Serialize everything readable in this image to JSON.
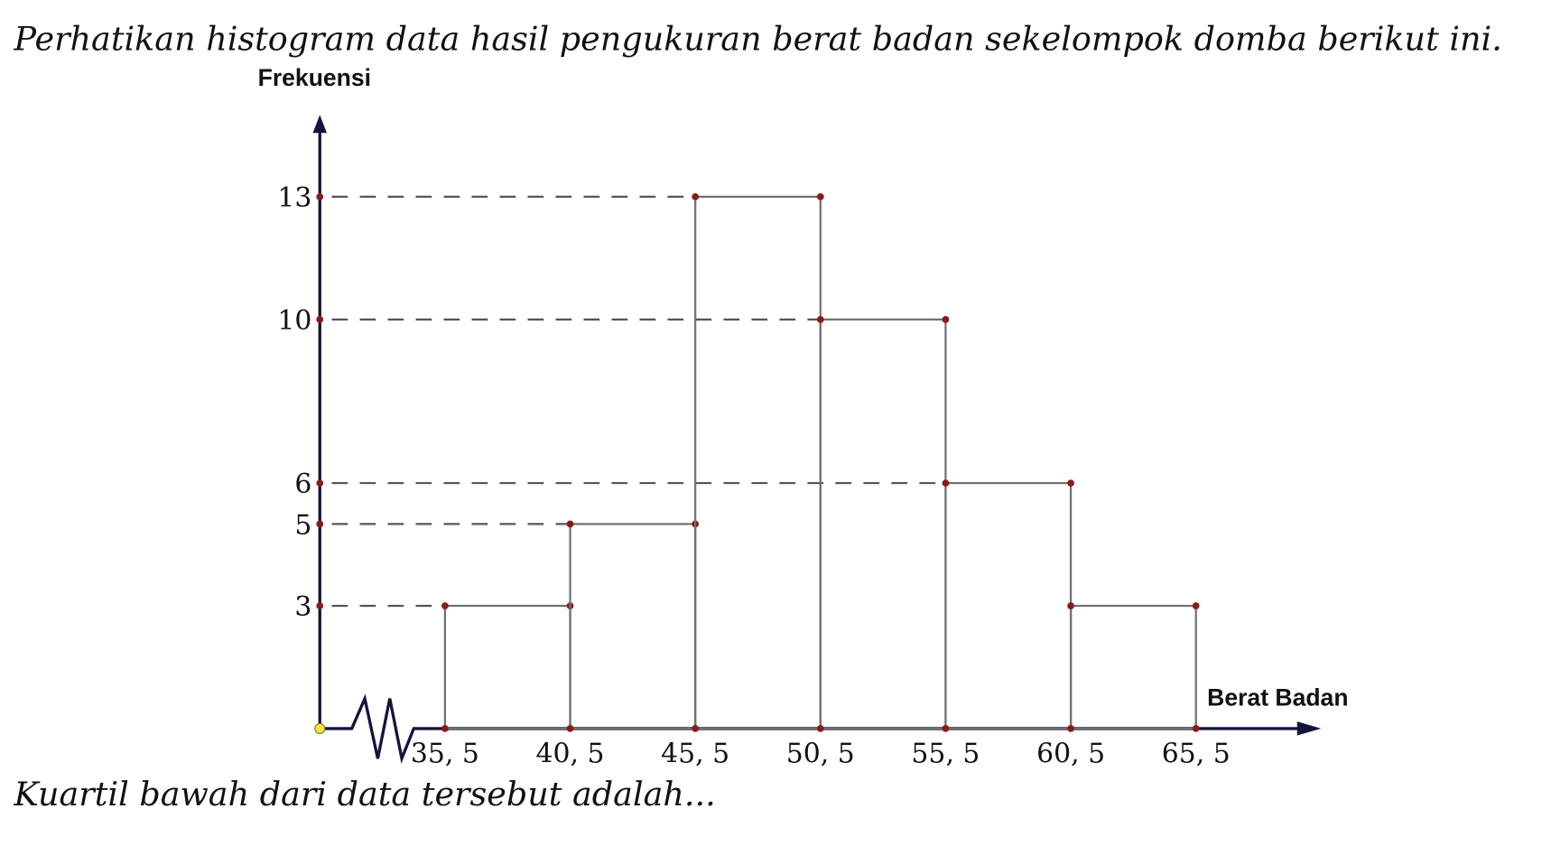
{
  "intro": "Perhatikan histogram data hasil pengukuran berat badan sekelompok domba berikut ini.",
  "question": "Kuartil bawah dari data tersebut adalah...",
  "chart_data": {
    "type": "histogram",
    "y_label": "Frekuensi",
    "x_label": "Berat Badan",
    "bins": [
      35.5,
      40.5,
      45.5,
      50.5,
      55.5,
      60.5,
      65.5
    ],
    "values": [
      3,
      5,
      13,
      10,
      6,
      3
    ],
    "xlim": [
      30.5,
      70.5
    ],
    "xticks": [
      {
        "value": 35.5,
        "label": "35, 5"
      },
      {
        "value": 40.5,
        "label": "40, 5"
      },
      {
        "value": 45.5,
        "label": "45, 5"
      },
      {
        "value": 50.5,
        "label": "50, 5"
      },
      {
        "value": 55.5,
        "label": "55, 5"
      },
      {
        "value": 60.5,
        "label": "60, 5"
      },
      {
        "value": 65.5,
        "label": "65, 5"
      }
    ],
    "ylim": [
      0,
      15
    ],
    "yticks": [
      3,
      5,
      6,
      10,
      13
    ],
    "color": "#707070",
    "dot_color": "#8b1a1a",
    "axis_color": "#14143c"
  }
}
